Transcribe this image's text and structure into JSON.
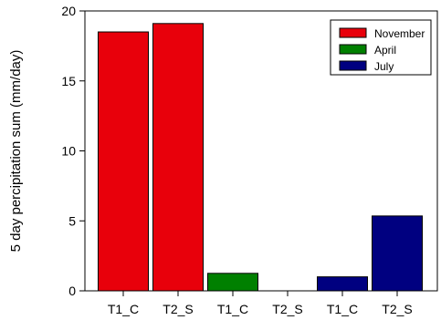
{
  "chart_data": {
    "type": "bar",
    "ylabel": "5 day percipitation sum (mm/day)",
    "ylim": [
      0,
      20
    ],
    "yticks": [
      0,
      5,
      10,
      15,
      20
    ],
    "grid": false,
    "legend_position": "top-right",
    "categories": [
      "T1_C",
      "T2_S",
      "T1_C",
      "T2_S",
      "T1_C",
      "T2_S"
    ],
    "series": [
      {
        "name": "November",
        "color": "#e8000b",
        "values": [
          18.5,
          19.1,
          null,
          null,
          null,
          null
        ]
      },
      {
        "name": "April",
        "color": "#008000",
        "values": [
          null,
          null,
          1.25,
          0,
          null,
          null
        ]
      },
      {
        "name": "July",
        "color": "#000080",
        "values": [
          null,
          null,
          null,
          null,
          1.0,
          5.35
        ]
      }
    ]
  }
}
